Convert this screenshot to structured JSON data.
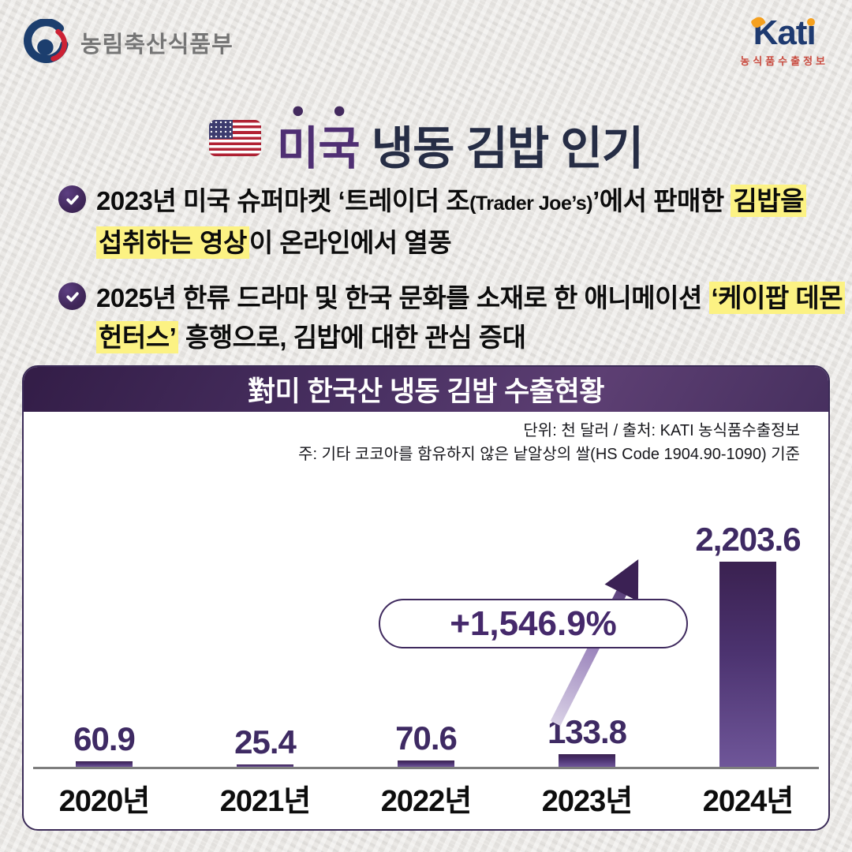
{
  "header": {
    "gov": {
      "label": "농림축산식품부"
    },
    "kati": {
      "word": "Kati",
      "subtext": "농식품수출정보"
    }
  },
  "title": {
    "flag_icon": "us-flag-icon",
    "highlight": "미국",
    "rest": " 냉동 김밥 인기"
  },
  "bullets": [
    {
      "line1_pre": "2023년 미국 슈퍼마켓 ‘트레이더 조",
      "line1_small": "(Trader Joe’s)",
      "line1_mid": "’에서 판매한 ",
      "line1_hl": "김밥을",
      "line2_hl": "섭취하는 영상",
      "line2_post": "이 온라인에서 열풍"
    },
    {
      "line1_pre": "2025년 한류 드라마 및 한국 문화를 소재로 한 애니메이션 ",
      "line1_hl": "‘케이팝 데몬",
      "line2_hl": "헌터스’",
      "line2_post": " 흥행으로, 김밥에 대한 관심 증대"
    }
  ],
  "card": {
    "title": "對미 한국산 냉동 김밥 수출현황",
    "note_unit": "단위: 천 달러 / 출처: KATI 농식품수출정보",
    "note_basis": "주: 기타 코코아를 함유하지 않은 낱알상의 쌀(HS Code 1904.90-1090) 기준",
    "growth_badge": "+1,546.9%"
  },
  "chart_data": {
    "type": "bar",
    "title": "對미 한국산 냉동 김밥 수출현황",
    "categories": [
      "2020년",
      "2021년",
      "2022년",
      "2023년",
      "2024년"
    ],
    "values": [
      60.9,
      25.4,
      70.6,
      133.8,
      2203.6
    ],
    "value_labels": [
      "60.9",
      "25.4",
      "70.6",
      "133.8",
      "2,203.6"
    ],
    "unit": "천 달러",
    "source": "KATI 농식품수출정보",
    "annotation": "+1,546.9%",
    "ylabel": "",
    "xlabel": "",
    "ylim": [
      0,
      2400
    ],
    "grid": false,
    "bar_color_top": "#3a2150",
    "bar_color_bottom": "#6f5699"
  },
  "colors": {
    "accent_purple": "#45296b",
    "header_purple": "#4a3163",
    "highlight_yellow": "#fcf283",
    "title_navy": "#262d45",
    "kati_navy": "#1e3a70",
    "kati_orange": "#f5a01e",
    "kati_red": "#c94a3e",
    "value_label": "#3e2a63"
  }
}
